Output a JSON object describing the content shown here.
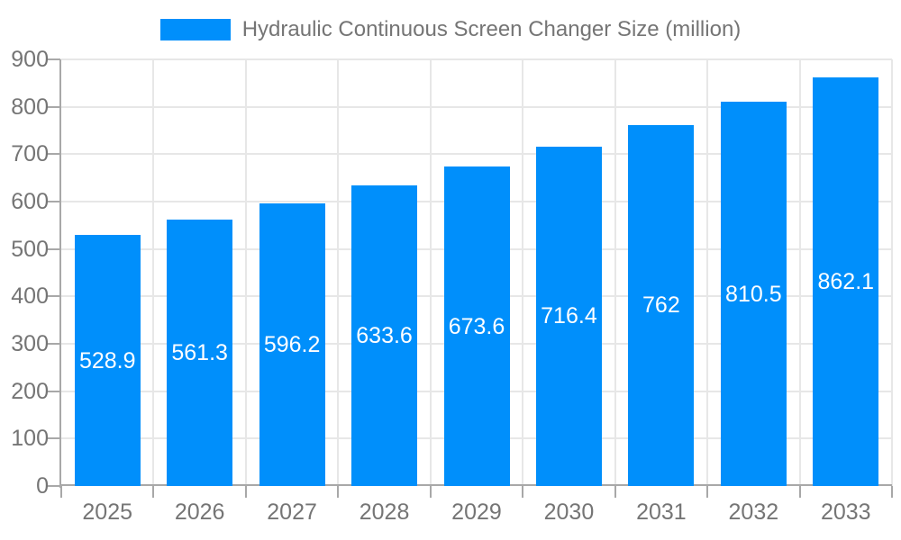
{
  "legend": {
    "position": "top",
    "items": [
      {
        "label": "Hydraulic Continuous Screen Changer Size (million)",
        "color": "#008FFB"
      }
    ]
  },
  "colors": {
    "bar": "#008FFB",
    "grid": "#e7e7e7",
    "axis": "#a8a8a8",
    "tick_label": "#757575",
    "legend_text": "#757575",
    "value_label": "#ffffff",
    "background": "#ffffff"
  },
  "chart_data": {
    "type": "bar",
    "title": "Hydraulic Continuous Screen Changer Size (million)",
    "series": [
      {
        "name": "Hydraulic Continuous Screen Changer Size (million)",
        "values": [
          528.9,
          561.3,
          596.2,
          633.6,
          673.6,
          716.4,
          762,
          810.5,
          862.1
        ]
      }
    ],
    "categories": [
      "2025",
      "2026",
      "2027",
      "2028",
      "2029",
      "2030",
      "2031",
      "2032",
      "2033"
    ],
    "value_labels": [
      "528.9",
      "561.3",
      "596.2",
      "633.6",
      "673.6",
      "716.4",
      "762",
      "810.5",
      "862.1"
    ],
    "xlabel": "",
    "ylabel": "",
    "ylim": [
      0,
      900
    ],
    "yticks": [
      0,
      100,
      200,
      300,
      400,
      500,
      600,
      700,
      800,
      900
    ],
    "grid": "on",
    "legend_position": "top",
    "value_labels_position": "center-inside"
  }
}
